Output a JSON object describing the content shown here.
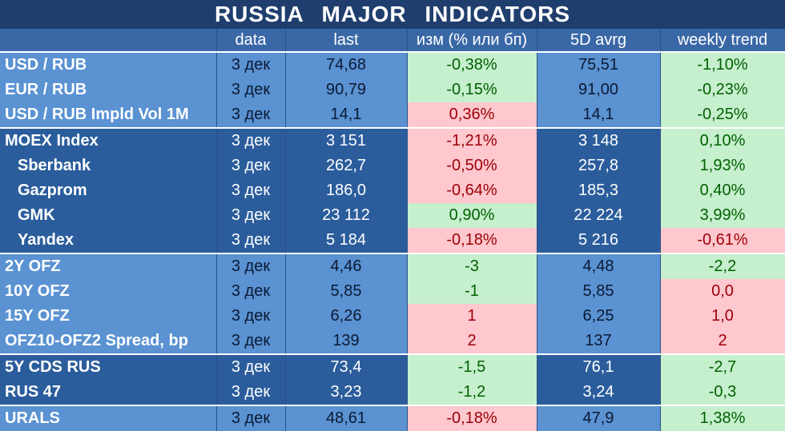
{
  "title": "RUSSIA   MAJOR   INDICATORS",
  "columns": [
    "",
    "data",
    "last",
    "изм (% или бп)",
    "5D avrg",
    "weekly trend"
  ],
  "colors": {
    "positive_bg": "#c6efce",
    "positive_text": "#006100",
    "negative_bg": "#ffc7ce",
    "negative_text": "#9c0006",
    "header_bg": "#3a68a6"
  },
  "rows": [
    {
      "name": "USD / RUB",
      "date": "3 дек",
      "last": "74,68",
      "chg": "-0,38%",
      "chg_sign": "pos",
      "avg": "75,51",
      "trend": "-1,10%",
      "trend_sign": "pos",
      "shade": "light",
      "indent": false,
      "sep": false
    },
    {
      "name": "EUR / RUB",
      "date": "3 дек",
      "last": "90,79",
      "chg": "-0,15%",
      "chg_sign": "pos",
      "avg": "91,00",
      "trend": "-0,23%",
      "trend_sign": "pos",
      "shade": "light",
      "indent": false,
      "sep": false
    },
    {
      "name": "USD / RUB Impld Vol 1M",
      "date": "3 дек",
      "last": "14,1",
      "chg": "0,36%",
      "chg_sign": "neg",
      "avg": "14,1",
      "trend": "-0,25%",
      "trend_sign": "pos",
      "shade": "light",
      "indent": false,
      "sep": false
    },
    {
      "name": "MOEX Index",
      "date": "3 дек",
      "last": "3 151",
      "chg": "-1,21%",
      "chg_sign": "neg",
      "avg": "3 148",
      "trend": "0,10%",
      "trend_sign": "pos",
      "shade": "dark",
      "indent": false,
      "sep": true
    },
    {
      "name": "Sberbank",
      "date": "3 дек",
      "last": "262,7",
      "chg": "-0,50%",
      "chg_sign": "neg",
      "avg": "257,8",
      "trend": "1,93%",
      "trend_sign": "pos",
      "shade": "dark",
      "indent": true,
      "sep": false
    },
    {
      "name": "Gazprom",
      "date": "3 дек",
      "last": "186,0",
      "chg": "-0,64%",
      "chg_sign": "neg",
      "avg": "185,3",
      "trend": "0,40%",
      "trend_sign": "pos",
      "shade": "dark",
      "indent": true,
      "sep": false
    },
    {
      "name": "GMK",
      "date": "3 дек",
      "last": "23 112",
      "chg": "0,90%",
      "chg_sign": "pos",
      "avg": "22 224",
      "trend": "3,99%",
      "trend_sign": "pos",
      "shade": "dark",
      "indent": true,
      "sep": false
    },
    {
      "name": "Yandex",
      "date": "3 дек",
      "last": "5 184",
      "chg": "-0,18%",
      "chg_sign": "neg",
      "avg": "5 216",
      "trend": "-0,61%",
      "trend_sign": "neg",
      "shade": "dark",
      "indent": true,
      "sep": false
    },
    {
      "name": "2Y OFZ",
      "date": "3 дек",
      "last": "4,46",
      "chg": "-3",
      "chg_sign": "pos",
      "avg": "4,48",
      "trend": "-2,2",
      "trend_sign": "pos",
      "shade": "light",
      "indent": false,
      "sep": true
    },
    {
      "name": "10Y OFZ",
      "date": "3 дек",
      "last": "5,85",
      "chg": "-1",
      "chg_sign": "pos",
      "avg": "5,85",
      "trend": "0,0",
      "trend_sign": "neg",
      "shade": "light",
      "indent": false,
      "sep": false
    },
    {
      "name": "15Y OFZ",
      "date": "3 дек",
      "last": "6,26",
      "chg": "1",
      "chg_sign": "neg",
      "avg": "6,25",
      "trend": "1,0",
      "trend_sign": "neg",
      "shade": "light",
      "indent": false,
      "sep": false
    },
    {
      "name": "OFZ10-OFZ2 Spread, bp",
      "date": "3 дек",
      "last": "139",
      "chg": "2",
      "chg_sign": "neg",
      "avg": "137",
      "trend": "2",
      "trend_sign": "neg",
      "shade": "light",
      "indent": false,
      "sep": false
    },
    {
      "name": "5Y CDS RUS",
      "date": "3 дек",
      "last": "73,4",
      "chg": "-1,5",
      "chg_sign": "pos",
      "avg": "76,1",
      "trend": "-2,7",
      "trend_sign": "pos",
      "shade": "dark",
      "indent": false,
      "sep": true
    },
    {
      "name": "RUS 47",
      "date": "3 дек",
      "last": "3,23",
      "chg": "-1,2",
      "chg_sign": "pos",
      "avg": "3,24",
      "trend": "-0,3",
      "trend_sign": "pos",
      "shade": "dark",
      "indent": false,
      "sep": false
    },
    {
      "name": "URALS",
      "date": "3 дек",
      "last": "48,61",
      "chg": "-0,18%",
      "chg_sign": "neg",
      "avg": "47,9",
      "trend": "1,38%",
      "trend_sign": "pos",
      "shade": "light",
      "indent": false,
      "sep": true
    }
  ]
}
